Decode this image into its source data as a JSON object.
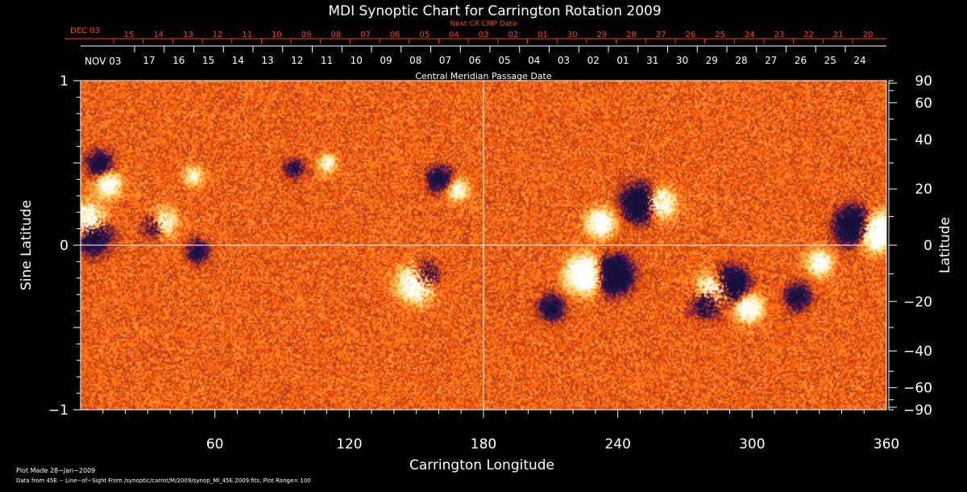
{
  "chart_data": {
    "type": "heatmap",
    "title": "MDI Synoptic Chart for Carrington Rotation 2009",
    "top_axis": {
      "label": "Next CR CMP Date",
      "month_label": "DEC 03",
      "ticks": [
        "15",
        "14",
        "13",
        "12",
        "11",
        "10",
        "09",
        "08",
        "07",
        "06",
        "05",
        "04",
        "03",
        "02",
        "01",
        "30",
        "29",
        "28",
        "27",
        "26",
        "25",
        "24",
        "23",
        "22",
        "21",
        "20"
      ]
    },
    "second_axis": {
      "label": "Central Meridian Passage Date",
      "month_label": "NOV 03",
      "ticks": [
        "17",
        "16",
        "15",
        "14",
        "13",
        "12",
        "11",
        "10",
        "09",
        "08",
        "07",
        "06",
        "05",
        "04",
        "03",
        "02",
        "01",
        "31",
        "30",
        "29",
        "28",
        "27",
        "26",
        "25",
        "24"
      ]
    },
    "xlabel": "Carrington Longitude",
    "ylabel_left": "Sine Latitude",
    "ylabel_right": "Latitude",
    "xlim": [
      0,
      360
    ],
    "ylim": [
      -1,
      1
    ],
    "x_ticks": [
      {
        "label": "60",
        "value": 60
      },
      {
        "label": "120",
        "value": 120
      },
      {
        "label": "180",
        "value": 180
      },
      {
        "label": "240",
        "value": 240
      },
      {
        "label": "300",
        "value": 300
      },
      {
        "label": "360",
        "value": 360
      }
    ],
    "left_ticks": [
      {
        "label": "1",
        "value": 1
      },
      {
        "label": "0",
        "value": 0
      },
      {
        "label": "−1",
        "value": -1
      }
    ],
    "right_ticks": [
      {
        "label": "90",
        "value": 90
      },
      {
        "label": "60",
        "value": 60
      },
      {
        "label": "40",
        "value": 40
      },
      {
        "label": "20",
        "value": 20
      },
      {
        "label": "0",
        "value": 0
      },
      {
        "label": "−20",
        "value": -20
      },
      {
        "label": "−40",
        "value": -40
      },
      {
        "label": "−60",
        "value": -60
      },
      {
        "label": "−90",
        "value": -90
      }
    ],
    "plot_range": 100,
    "colors": {
      "background": "#ff5a00",
      "positive": "#ffffff",
      "positive_mid": "#ffe27a",
      "negative": "#14103c",
      "negative_mid": "#4a1450",
      "axis": "#ffffff",
      "top_axis": "#ff4500"
    },
    "regions": [
      {
        "lon": 3,
        "lat": 8,
        "strength": 100
      },
      {
        "lon": 5,
        "lat": 4,
        "strength": -100
      },
      {
        "lon": 12,
        "lat": 22,
        "strength": 60
      },
      {
        "lon": 8,
        "lat": 30,
        "strength": -60
      },
      {
        "lon": 36,
        "lat": 8,
        "strength": 70
      },
      {
        "lon": 33,
        "lat": 7,
        "strength": -60
      },
      {
        "lon": 50,
        "lat": 25,
        "strength": 40
      },
      {
        "lon": 52,
        "lat": -2,
        "strength": -50
      },
      {
        "lon": 95,
        "lat": 28,
        "strength": -40
      },
      {
        "lon": 110,
        "lat": 30,
        "strength": 40
      },
      {
        "lon": 150,
        "lat": -13,
        "strength": 100
      },
      {
        "lon": 153,
        "lat": -11,
        "strength": -80
      },
      {
        "lon": 160,
        "lat": 24,
        "strength": -60
      },
      {
        "lon": 168,
        "lat": 20,
        "strength": 50
      },
      {
        "lon": 225,
        "lat": -10,
        "strength": 100
      },
      {
        "lon": 238,
        "lat": -10,
        "strength": -100
      },
      {
        "lon": 232,
        "lat": 8,
        "strength": 70
      },
      {
        "lon": 250,
        "lat": 15,
        "strength": -100
      },
      {
        "lon": 258,
        "lat": 15,
        "strength": 80
      },
      {
        "lon": 283,
        "lat": -16,
        "strength": 100
      },
      {
        "lon": 290,
        "lat": -14,
        "strength": -100
      },
      {
        "lon": 280,
        "lat": -20,
        "strength": -80
      },
      {
        "lon": 298,
        "lat": -22,
        "strength": 70
      },
      {
        "lon": 320,
        "lat": -18,
        "strength": -60
      },
      {
        "lon": 345,
        "lat": 7,
        "strength": -100
      },
      {
        "lon": 355,
        "lat": 5,
        "strength": 100
      },
      {
        "lon": 330,
        "lat": -6,
        "strength": 60
      },
      {
        "lon": 210,
        "lat": -22,
        "strength": -60
      }
    ]
  },
  "footer": {
    "plot_made": "Plot Made 28−Jan−2009",
    "data_source": "Data from 45E − Line−of−Sight From /synoptic/carrot/M/2009/synop_Ml_45E.2009.fits; Plot Range=  100"
  }
}
